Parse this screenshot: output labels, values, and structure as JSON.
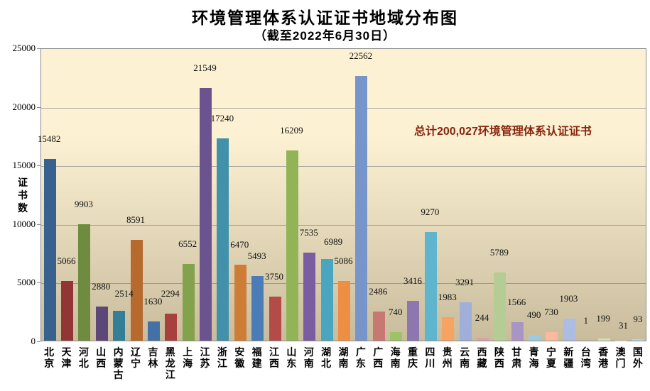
{
  "title": "环境管理体系认证证书地域分布图",
  "subtitle": "（截至2022年6月30日）",
  "annotation": "总计200,027环境管理体系认证证书",
  "chart_data": {
    "type": "bar",
    "title": "环境管理体系认证证书地域分布图",
    "subtitle": "（截至2022年6月30日）",
    "ylabel": "证书数",
    "xlabel": "",
    "categories": [
      "北京",
      "天津",
      "河北",
      "山西",
      "内蒙古",
      "辽宁",
      "吉林",
      "黑龙江",
      "上海",
      "江苏",
      "浙江",
      "安徽",
      "福建",
      "江西",
      "山东",
      "河南",
      "湖北",
      "湖南",
      "广东",
      "广西",
      "海南",
      "重庆",
      "四川",
      "贵州",
      "云南",
      "西藏",
      "陕西",
      "甘肃",
      "青海",
      "宁夏",
      "新疆",
      "台湾",
      "香港",
      "澳门",
      "国外"
    ],
    "values": [
      15482,
      5066,
      9903,
      2880,
      2514,
      8591,
      1630,
      2294,
      6552,
      21549,
      17240,
      6470,
      5493,
      3750,
      16209,
      7535,
      6989,
      5086,
      22562,
      2486,
      740,
      3416,
      9270,
      1983,
      3291,
      244,
      5789,
      1566,
      490,
      730,
      1903,
      1,
      199,
      31,
      93
    ],
    "bar_colors": [
      "#38618F",
      "#913634",
      "#6F8B40",
      "#5C4777",
      "#337F97",
      "#B66A2E",
      "#4371A6",
      "#A8413E",
      "#83A24C",
      "#6B538F",
      "#4191AB",
      "#CE7D36",
      "#4A7CB8",
      "#B54B48",
      "#92B457",
      "#7A5CA0",
      "#4AA6C0",
      "#EC8F44",
      "#7895CB",
      "#C87873",
      "#9DC268",
      "#8E76AE",
      "#5FB4CE",
      "#F7A361",
      "#9FAFD9",
      "#D7A3A5",
      "#B5CD94",
      "#A995C4",
      "#9CCADF",
      "#F9BB9A",
      "#ACBCE2",
      "#E3C0BE",
      "#D4E0BE",
      "#C3BAD6",
      "#AFD9E8"
    ],
    "ylim": [
      0,
      25000
    ],
    "yticks": [
      0,
      5000,
      10000,
      15000,
      20000,
      25000
    ],
    "grid": true,
    "legend": false,
    "data_labels": true,
    "annotation": "总计200,027环境管理体系认证证书",
    "total": 200027,
    "annotation_color": "#86260D",
    "plot_bg_gradient_top": "#FDF1D3",
    "plot_bg_gradient_bottom": "#C8BC9D",
    "label_offsets": {
      "4": [
        8,
        4
      ],
      "16": [
        10,
        4
      ],
      "33": [
        4,
        8
      ]
    }
  }
}
